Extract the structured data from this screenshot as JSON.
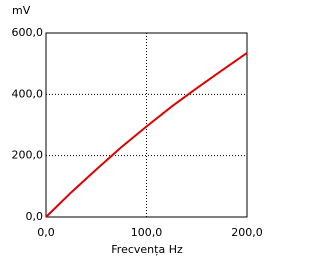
{
  "chart_data": {
    "type": "line",
    "y_label": "mV",
    "x_label": "Frecvența  Hz",
    "x": [
      0,
      25,
      50,
      75,
      100,
      125,
      150,
      175,
      200
    ],
    "series": [
      {
        "name": "mV",
        "color": "#e00000",
        "values": [
          0,
          80,
          155,
          228,
          295,
          360,
          420,
          478,
          535
        ]
      }
    ],
    "xlim": [
      0,
      200
    ],
    "ylim": [
      0,
      600
    ],
    "xticks": [
      {
        "value": 0,
        "label": "0,0"
      },
      {
        "value": 100,
        "label": "100,0"
      },
      {
        "value": 200,
        "label": "200,0"
      }
    ],
    "yticks": [
      {
        "value": 0,
        "label": "0,0"
      },
      {
        "value": 200,
        "label": "200,0"
      },
      {
        "value": 400,
        "label": "400,0"
      },
      {
        "value": 600,
        "label": "600,0"
      }
    ],
    "grid": true
  }
}
